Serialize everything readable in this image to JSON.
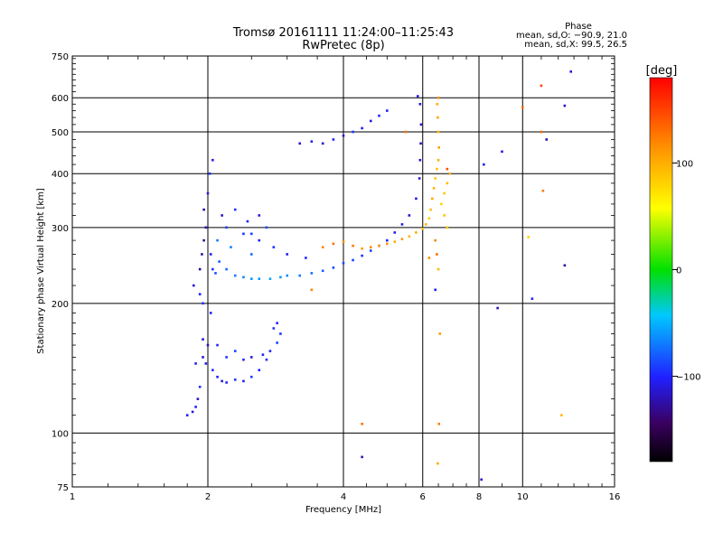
{
  "chart_data": {
    "type": "scatter",
    "title": "Tromsø 20161111 11:24:00–11:25:43",
    "subtitle": "RwPretec (8p)",
    "xlabel": "Frequency [MHz]",
    "ylabel": "Stationary phase Virtual Height [km]",
    "x_scale": "log",
    "y_scale": "log",
    "xlim": [
      1,
      16
    ],
    "ylim": [
      75,
      750
    ],
    "x_ticks": [
      1,
      2,
      4,
      6,
      8,
      10,
      16
    ],
    "x_tick_labels": [
      "1",
      "2",
      "4",
      "6",
      "8",
      "10",
      "16"
    ],
    "y_ticks": [
      75,
      100,
      200,
      300,
      400,
      500,
      600,
      750
    ],
    "y_tick_labels": [
      "75",
      "100",
      "200",
      "300",
      "400",
      "500",
      "600",
      "750"
    ],
    "grid": true,
    "stats": {
      "heading": "Phase",
      "line_o": "mean, sd,O: −90.9, 21.0",
      "line_x": "mean, sd,X:  99.5, 26.5"
    },
    "colorbar": {
      "label": "[deg]",
      "range": [
        -180,
        180
      ],
      "ticks": [
        100,
        0,
        -100
      ],
      "tick_labels": [
        "100",
        "0",
        "−100"
      ],
      "colormap": "rainbow"
    },
    "series": [
      {
        "mode": "O",
        "mean_phase": -90.9,
        "sd_phase": 21.0,
        "points": [
          [
            1.8,
            110,
            -105
          ],
          [
            1.85,
            112,
            -110
          ],
          [
            1.88,
            115,
            -100
          ],
          [
            1.9,
            120,
            -115
          ],
          [
            1.92,
            128,
            -95
          ],
          [
            1.88,
            145,
            -100
          ],
          [
            1.95,
            150,
            -110
          ],
          [
            1.98,
            145,
            -105
          ],
          [
            2.05,
            140,
            -95
          ],
          [
            2.1,
            135,
            -100
          ],
          [
            2.15,
            132,
            -110
          ],
          [
            2.2,
            131,
            -100
          ],
          [
            2.3,
            133,
            -95
          ],
          [
            2.4,
            132,
            -105
          ],
          [
            2.5,
            135,
            -90
          ],
          [
            2.6,
            140,
            -100
          ],
          [
            2.7,
            148,
            -95
          ],
          [
            2.75,
            155,
            -100
          ],
          [
            2.85,
            162,
            -90
          ],
          [
            2.9,
            170,
            -95
          ],
          [
            1.95,
            165,
            -110
          ],
          [
            2.0,
            160,
            -120
          ],
          [
            2.1,
            160,
            -100
          ],
          [
            2.2,
            150,
            -95
          ],
          [
            2.3,
            155,
            -90
          ],
          [
            2.4,
            148,
            -100
          ],
          [
            2.5,
            150,
            -110
          ],
          [
            2.65,
            152,
            -100
          ],
          [
            2.8,
            175,
            -95
          ],
          [
            2.85,
            180,
            -100
          ],
          [
            1.92,
            240,
            -130
          ],
          [
            1.94,
            260,
            -125
          ],
          [
            1.96,
            280,
            -130
          ],
          [
            1.98,
            300,
            -120
          ],
          [
            1.96,
            330,
            -125
          ],
          [
            2.0,
            360,
            -110
          ],
          [
            2.02,
            400,
            -95
          ],
          [
            2.05,
            430,
            -105
          ],
          [
            2.03,
            260,
            -110
          ],
          [
            2.05,
            240,
            -95
          ],
          [
            2.08,
            235,
            -85
          ],
          [
            2.12,
            250,
            -80
          ],
          [
            2.2,
            240,
            -75
          ],
          [
            2.3,
            232,
            -70
          ],
          [
            2.4,
            230,
            -65
          ],
          [
            2.5,
            228,
            -60
          ],
          [
            2.6,
            228,
            -60
          ],
          [
            2.75,
            228,
            -55
          ],
          [
            2.9,
            230,
            -60
          ],
          [
            3.0,
            232,
            -65
          ],
          [
            3.2,
            232,
            -70
          ],
          [
            3.4,
            235,
            -75
          ],
          [
            3.6,
            238,
            -80
          ],
          [
            3.8,
            242,
            -85
          ],
          [
            4.0,
            248,
            -85
          ],
          [
            4.2,
            252,
            -90
          ],
          [
            4.4,
            258,
            -95
          ],
          [
            4.6,
            265,
            -90
          ],
          [
            4.8,
            272,
            -95
          ],
          [
            5.0,
            280,
            -100
          ],
          [
            5.2,
            292,
            -105
          ],
          [
            5.4,
            305,
            -110
          ],
          [
            5.6,
            320,
            -115
          ],
          [
            5.8,
            350,
            -110
          ],
          [
            5.9,
            390,
            -115
          ],
          [
            5.92,
            430,
            -110
          ],
          [
            5.94,
            470,
            -120
          ],
          [
            5.95,
            520,
            -115
          ],
          [
            5.92,
            580,
            -110
          ],
          [
            5.85,
            605,
            -105
          ],
          [
            2.2,
            300,
            -90
          ],
          [
            2.4,
            290,
            -95
          ],
          [
            2.6,
            280,
            -100
          ],
          [
            2.8,
            270,
            -95
          ],
          [
            3.0,
            260,
            -105
          ],
          [
            3.3,
            255,
            -100
          ],
          [
            2.1,
            280,
            -70
          ],
          [
            2.25,
            270,
            -65
          ],
          [
            2.5,
            260,
            -75
          ],
          [
            2.7,
            300,
            -85
          ],
          [
            2.6,
            320,
            -110
          ],
          [
            2.45,
            310,
            -100
          ],
          [
            2.15,
            320,
            -115
          ],
          [
            2.3,
            330,
            -95
          ],
          [
            2.5,
            290,
            -90
          ],
          [
            3.2,
            470,
            -110
          ],
          [
            3.4,
            475,
            -105
          ],
          [
            3.6,
            470,
            -115
          ],
          [
            3.8,
            480,
            -100
          ],
          [
            4.0,
            490,
            -110
          ],
          [
            4.2,
            500,
            -95
          ],
          [
            4.4,
            510,
            -105
          ],
          [
            4.6,
            530,
            -110
          ],
          [
            4.8,
            545,
            -100
          ],
          [
            5.0,
            560,
            -105
          ],
          [
            1.95,
            200,
            -95
          ],
          [
            1.92,
            210,
            -100
          ],
          [
            2.03,
            190,
            -105
          ],
          [
            1.86,
            220,
            -110
          ],
          [
            4.4,
            88,
            -120
          ],
          [
            6.4,
            215,
            -105
          ],
          [
            8.8,
            195,
            -120
          ],
          [
            8.1,
            78,
            -115
          ],
          [
            10.5,
            205,
            -100
          ],
          [
            12.4,
            245,
            -125
          ],
          [
            9.0,
            450,
            -110
          ],
          [
            11.3,
            480,
            -120
          ],
          [
            12.4,
            575,
            -115
          ],
          [
            8.2,
            420,
            -105
          ],
          [
            12.8,
            690,
            -110
          ]
        ]
      },
      {
        "mode": "X",
        "mean_phase": 99.5,
        "sd_phase": 26.5,
        "points": [
          [
            3.6,
            270,
            120
          ],
          [
            3.8,
            275,
            130
          ],
          [
            4.0,
            278,
            115
          ],
          [
            4.2,
            272,
            125
          ],
          [
            4.4,
            268,
            110
          ],
          [
            4.6,
            270,
            120
          ],
          [
            4.8,
            272,
            105
          ],
          [
            5.0,
            275,
            115
          ],
          [
            5.2,
            278,
            100
          ],
          [
            5.4,
            282,
            110
          ],
          [
            5.6,
            286,
            95
          ],
          [
            5.8,
            292,
            100
          ],
          [
            6.0,
            298,
            90
          ],
          [
            6.1,
            305,
            95
          ],
          [
            6.2,
            315,
            85
          ],
          [
            6.25,
            330,
            90
          ],
          [
            6.3,
            350,
            100
          ],
          [
            6.35,
            370,
            95
          ],
          [
            6.4,
            390,
            85
          ],
          [
            6.45,
            410,
            90
          ],
          [
            6.5,
            430,
            100
          ],
          [
            6.52,
            460,
            110
          ],
          [
            6.5,
            500,
            95
          ],
          [
            6.48,
            540,
            105
          ],
          [
            6.46,
            580,
            100
          ],
          [
            6.5,
            600,
            115
          ],
          [
            6.6,
            340,
            80
          ],
          [
            6.7,
            360,
            85
          ],
          [
            6.8,
            380,
            95
          ],
          [
            6.9,
            400,
            100
          ],
          [
            6.7,
            320,
            90
          ],
          [
            6.8,
            300,
            85
          ],
          [
            6.4,
            280,
            120
          ],
          [
            6.45,
            260,
            130
          ],
          [
            6.5,
            240,
            95
          ],
          [
            6.55,
            170,
            110
          ],
          [
            6.52,
            105,
            125
          ],
          [
            6.48,
            85,
            100
          ],
          [
            4.4,
            105,
            130
          ],
          [
            3.4,
            215,
            120
          ],
          [
            6.2,
            255,
            115
          ],
          [
            10.0,
            570,
            130
          ],
          [
            11.0,
            500,
            135
          ],
          [
            11.0,
            640,
            150
          ],
          [
            11.1,
            365,
            125
          ],
          [
            12.2,
            110,
            95
          ],
          [
            10.3,
            285,
            80
          ],
          [
            6.8,
            410,
            145
          ],
          [
            5.5,
            500,
            130
          ]
        ]
      }
    ]
  }
}
